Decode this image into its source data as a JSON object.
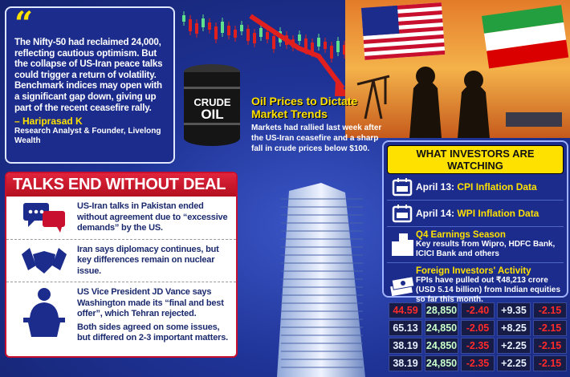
{
  "quote": {
    "text": "The Nifty-50 had reclaimed 24,000, reflecting cautious optimism. But the collapse of US-Iran peace talks could trigger a return of volatility. Benchmark indices may open with a significant gap down, giving up part of the recent ceasefire rally.",
    "author": "– Hariprasad K",
    "role": "Research Analyst & Founder, Livelong Wealth"
  },
  "barrel_label": [
    "CRUDE",
    "OIL"
  ],
  "oil": {
    "title": "Oil Prices to Dictate Market Trends",
    "text": "Markets had rallied last week after the US-Iran ceasefire and a sharp fall in crude prices below $100."
  },
  "talks": {
    "title": "TALKS END WITHOUT DEAL",
    "items": [
      {
        "icon": "chat-bubbles-icon",
        "text": "US-Iran talks in Pakistan ended without agreement due to “excessive demands” by the US."
      },
      {
        "icon": "handshake-icon",
        "text": "Iran says diplomacy continues, but key differences remain on nuclear issue."
      },
      {
        "icon": "podium-speaker-icon",
        "text": "US Vice President JD Vance says Washington made its “final and best offer”, which Tehran rejected.",
        "extra": "Both sides agreed on some issues, but differed on 2-3 important matters."
      }
    ]
  },
  "investors": {
    "title": "WHAT INVESTORS ARE WATCHING",
    "items": [
      {
        "icon": "calendar-icon",
        "date": "April 13:",
        "label": "CPI Inflation Data"
      },
      {
        "icon": "calendar-icon",
        "date": "April 14:",
        "label": "WPI Inflation Data"
      },
      {
        "icon": "buildings-icon",
        "label": "Q4 Earnings Season",
        "text": "Key results from Wipro, HDFC Bank, ICICI Bank and others"
      },
      {
        "icon": "money-stack-icon",
        "label": "Foreign Investors' Activity",
        "text": "FPIs have pulled out ₹48,213 crore (USD 5.14 billion) from Indian equities so far this month."
      }
    ]
  },
  "ticker": [
    [
      "44.59",
      "28,850",
      "-2.40",
      "+9.35",
      "-2.15"
    ],
    [
      "65.13",
      "24,850",
      "-2.05",
      "+8.25",
      "-2.15"
    ],
    [
      "38.19",
      "24,850",
      "-2.35",
      "+2.25",
      "-2.15"
    ],
    [
      "38.19",
      "24,850",
      "-2.35",
      "+2.25",
      "-2.15"
    ]
  ],
  "colors": {
    "accent": "#ffe100",
    "negative": "#ff2a2a",
    "positive": "#c9ffc9",
    "banner": "#c8102e",
    "background": "#1f3396"
  }
}
